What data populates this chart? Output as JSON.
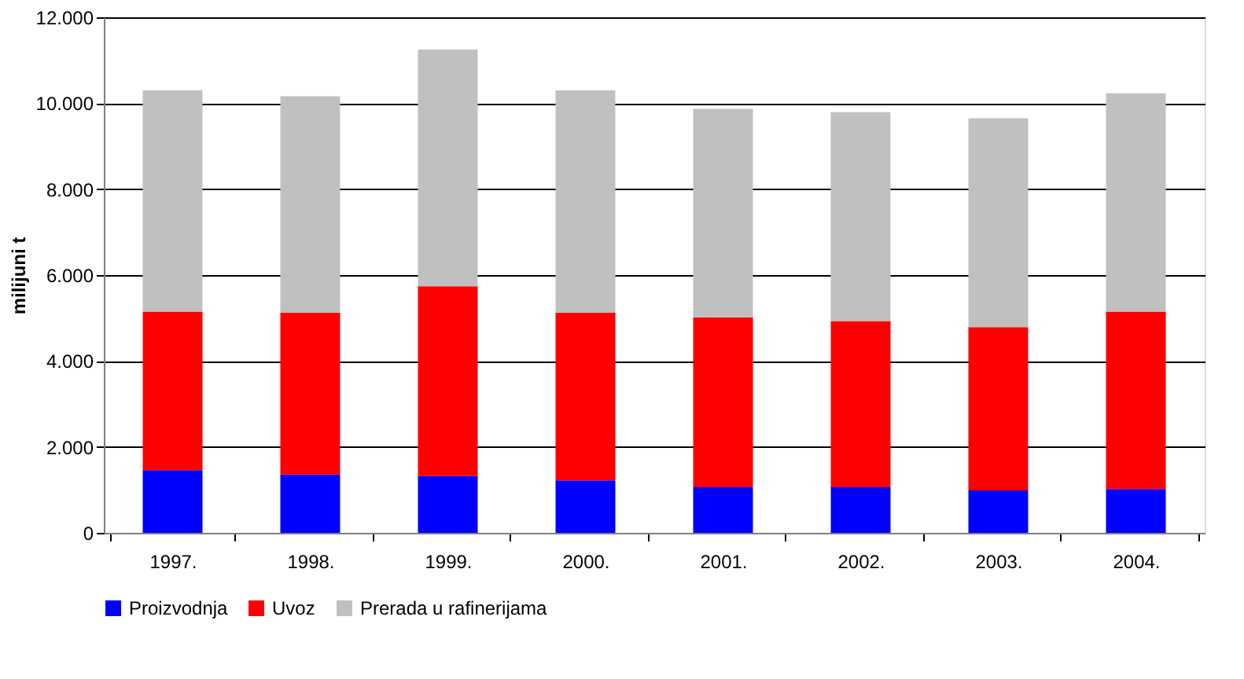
{
  "chart_data": {
    "type": "bar",
    "ylabel": "milijuni t",
    "stacked": true,
    "categories": [
      "1997.",
      "1998.",
      "1999.",
      "2000.",
      "2001.",
      "2002.",
      "2003.",
      "2004."
    ],
    "series": [
      {
        "name": "Proizvodnja",
        "color": "#0000ff",
        "values": [
          1460,
          1360,
          1320,
          1220,
          1060,
          1060,
          990,
          1020
        ]
      },
      {
        "name": "Uvoz",
        "color": "#ff0000",
        "values": [
          3690,
          3760,
          4420,
          3900,
          3950,
          3870,
          3800,
          4130
        ]
      },
      {
        "name": "Prerada u rafinerijama",
        "color": "#c0c0c0",
        "values": [
          5150,
          5040,
          5510,
          5180,
          4860,
          4860,
          4860,
          5080
        ]
      }
    ],
    "ylim": [
      0,
      12000
    ],
    "yticks": [
      {
        "value": 0,
        "label": "0"
      },
      {
        "value": 2000,
        "label": "2.000"
      },
      {
        "value": 4000,
        "label": "4.000"
      },
      {
        "value": 6000,
        "label": "6.000"
      },
      {
        "value": 8000,
        "label": "8.000"
      },
      {
        "value": 10000,
        "label": "10.000"
      },
      {
        "value": 12000,
        "label": "12.000"
      }
    ],
    "grid": "y",
    "legend": "bottom"
  }
}
